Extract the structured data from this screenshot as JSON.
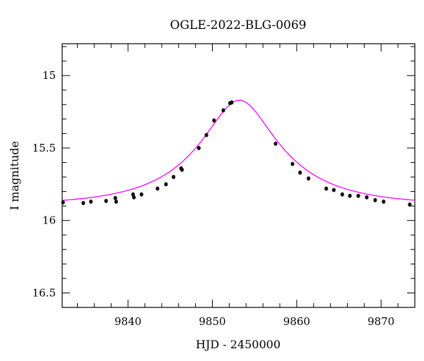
{
  "chart_data": {
    "type": "scatter",
    "title": "OGLE-2022-BLG-0069",
    "xlabel": "HJD - 2450000",
    "ylabel": "I magnitude",
    "xlim": [
      9832.2,
      9874.0
    ],
    "ylim": [
      16.6,
      14.78
    ],
    "y_inverted": true,
    "x_major_ticks": [
      9840,
      9850,
      9860,
      9870
    ],
    "x_minor_step": 2,
    "y_major_ticks": [
      15,
      15.5,
      16,
      16.5
    ],
    "y_minor_step": 0.1,
    "tick_labels": {
      "x": [
        "9840",
        "9850",
        "9860",
        "9870"
      ],
      "y": [
        "15",
        "15.5",
        "16",
        "16.5"
      ]
    },
    "grid": false,
    "colors": {
      "model": "#ff00ff",
      "points": "#111111"
    },
    "model": {
      "name": "",
      "type": "point-lens",
      "t0": 9853.2,
      "u0": 0.35,
      "tE": 11.0,
      "baseline_mag": 15.895,
      "peak_mag": 15.17
    },
    "series": [
      {
        "name": "",
        "x": [
          9832.3,
          9834.7,
          9835.6,
          9837.4,
          9838.5,
          9838.6,
          9840.6,
          9840.7,
          9841.6,
          9843.5,
          9844.5,
          9845.4,
          9846.3,
          9846.4,
          9848.4,
          9849.3,
          9850.2,
          9851.3,
          9852.1,
          9852.3,
          9857.5,
          9859.5,
          9860.4,
          9861.4,
          9863.5,
          9864.4,
          9865.4,
          9866.3,
          9867.3,
          9868.3,
          9869.3,
          9870.3,
          9873.4
        ],
        "y": [
          15.875,
          15.88,
          15.87,
          15.865,
          15.845,
          15.87,
          15.82,
          15.84,
          15.82,
          15.78,
          15.75,
          15.7,
          15.64,
          15.65,
          15.5,
          15.41,
          15.31,
          15.24,
          15.19,
          15.185,
          15.47,
          15.61,
          15.67,
          15.71,
          15.78,
          15.79,
          15.82,
          15.83,
          15.83,
          15.84,
          15.86,
          15.87,
          15.89
        ]
      }
    ]
  }
}
